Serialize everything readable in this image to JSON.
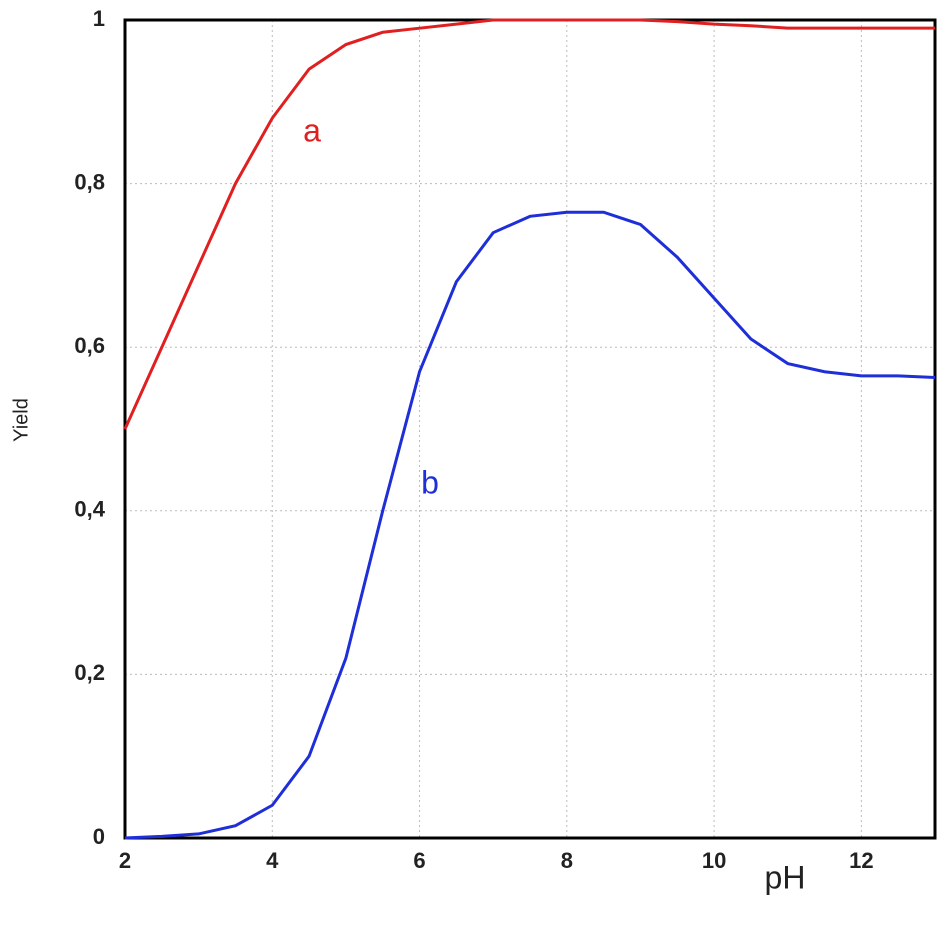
{
  "chart_data": {
    "type": "line",
    "x_label": "pH",
    "y_label": "Yield",
    "x": [
      2,
      2.5,
      3,
      3.5,
      4,
      4.5,
      5,
      5.5,
      6,
      6.5,
      7,
      7.5,
      8,
      8.5,
      9,
      9.5,
      10,
      10.5,
      11,
      11.5,
      12,
      12.5,
      13
    ],
    "series": [
      {
        "name": "a",
        "color": "#e02020",
        "values": [
          0.5,
          0.6,
          0.7,
          0.8,
          0.88,
          0.94,
          0.97,
          0.985,
          0.99,
          0.995,
          1,
          1,
          1,
          1,
          1,
          0.998,
          0.995,
          0.993,
          0.99,
          0.99,
          0.99,
          0.99,
          0.99
        ]
      },
      {
        "name": "b",
        "color": "#1f2fd8",
        "values": [
          0,
          0.002,
          0.005,
          0.015,
          0.04,
          0.1,
          0.22,
          0.4,
          0.57,
          0.68,
          0.74,
          0.76,
          0.765,
          0.765,
          0.75,
          0.71,
          0.66,
          0.61,
          0.58,
          0.57,
          0.565,
          0.565,
          0.563
        ]
      }
    ],
    "xlim": [
      2,
      13
    ],
    "ylim": [
      0,
      1
    ],
    "xticks": [
      2,
      4,
      6,
      8,
      10,
      12
    ],
    "yticks": [
      0,
      {
        "value": 0.2,
        "label": "0,2"
      },
      {
        "value": 0.4,
        "label": "0,4"
      },
      {
        "value": 0.6,
        "label": "0,6"
      },
      {
        "value": 0.8,
        "label": "0,8"
      },
      1
    ],
    "grid": true
  }
}
